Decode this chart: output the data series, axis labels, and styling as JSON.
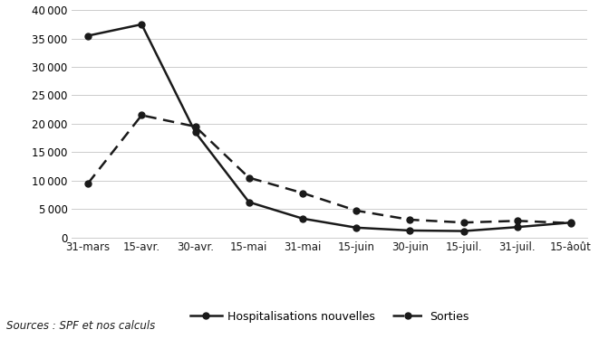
{
  "x_labels": [
    "31-mars",
    "15-avr.",
    "30-avr.",
    "15-mai",
    "31-mai",
    "15-juin",
    "30-juin",
    "15-juil.",
    "31-juil.",
    "15-âoût"
  ],
  "hosp_nouvelles": [
    35500,
    37500,
    18500,
    6200,
    3300,
    1700,
    1200,
    1100,
    1800,
    2600
  ],
  "sorties": [
    9500,
    21500,
    19500,
    10500,
    7800,
    4700,
    3100,
    2600,
    2900,
    2500
  ],
  "ylim": [
    0,
    40000
  ],
  "yticks": [
    0,
    5000,
    10000,
    15000,
    20000,
    25000,
    30000,
    35000,
    40000
  ],
  "line_color": "#1a1a1a",
  "legend_hosp": "Hospitalisations nouvelles",
  "legend_sorties": "Sorties",
  "source_text": "Sources : SPF et nos calculs",
  "background_color": "#ffffff"
}
